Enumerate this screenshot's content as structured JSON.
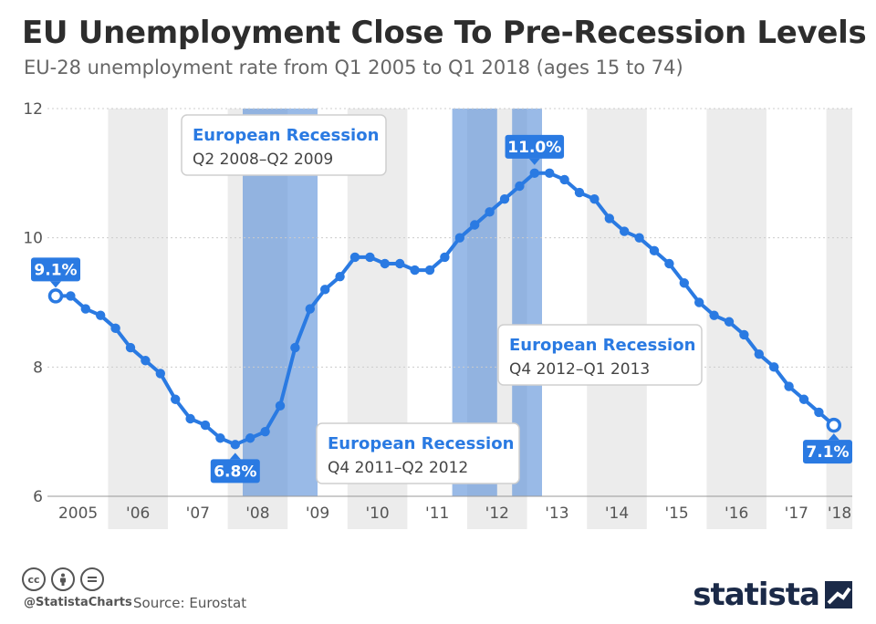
{
  "title": "EU Unemployment Close To Pre-Recession Levels",
  "subtitle": "EU-28 unemployment rate from Q1 2005 to Q1 2018 (ages 15 to 74)",
  "footer": {
    "handle": "@StatistaCharts",
    "source": "Source: Eurostat",
    "brand": "statista"
  },
  "colors": {
    "line": "#2a7ae2",
    "label_bg": "#2a7ae2",
    "band_gray": "#ececec",
    "recession": "#5b8fd9",
    "grid": "#cccccc"
  },
  "chart_data": {
    "type": "line",
    "title": "EU Unemployment Close To Pre-Recession Levels",
    "xlabel": "",
    "ylabel": "",
    "ylim": [
      6,
      12
    ],
    "yticks": [
      6,
      8,
      10,
      12
    ],
    "year_labels": [
      "2005",
      "'06",
      "'07",
      "'08",
      "'09",
      "'10",
      "'11",
      "'12",
      "'13",
      "'14",
      "'15",
      "'16",
      "'17",
      "'18"
    ],
    "series": [
      {
        "name": "EU-28 unemployment rate (%)",
        "x": [
          "Q1 2005",
          "Q2 2005",
          "Q3 2005",
          "Q4 2005",
          "Q1 2006",
          "Q2 2006",
          "Q3 2006",
          "Q4 2006",
          "Q1 2007",
          "Q2 2007",
          "Q3 2007",
          "Q4 2007",
          "Q1 2008",
          "Q2 2008",
          "Q3 2008",
          "Q4 2008",
          "Q1 2009",
          "Q2 2009",
          "Q3 2009",
          "Q4 2009",
          "Q1 2010",
          "Q2 2010",
          "Q3 2010",
          "Q4 2010",
          "Q1 2011",
          "Q2 2011",
          "Q3 2011",
          "Q4 2011",
          "Q1 2012",
          "Q2 2012",
          "Q3 2012",
          "Q4 2012",
          "Q1 2013",
          "Q2 2013",
          "Q3 2013",
          "Q4 2013",
          "Q1 2014",
          "Q2 2014",
          "Q3 2014",
          "Q4 2014",
          "Q1 2015",
          "Q2 2015",
          "Q3 2015",
          "Q4 2015",
          "Q1 2016",
          "Q2 2016",
          "Q3 2016",
          "Q4 2016",
          "Q1 2017",
          "Q2 2017",
          "Q3 2017",
          "Q4 2017",
          "Q1 2018"
        ],
        "values": [
          9.1,
          9.1,
          8.9,
          8.8,
          8.6,
          8.3,
          8.1,
          7.9,
          7.5,
          7.2,
          7.1,
          6.9,
          6.8,
          6.9,
          7.0,
          7.4,
          8.3,
          8.9,
          9.2,
          9.4,
          9.7,
          9.7,
          9.6,
          9.6,
          9.5,
          9.5,
          9.7,
          10.0,
          10.2,
          10.4,
          10.6,
          10.8,
          11.0,
          11.0,
          10.9,
          10.7,
          10.6,
          10.3,
          10.1,
          10.0,
          9.8,
          9.6,
          9.3,
          9.0,
          8.8,
          8.7,
          8.5,
          8.2,
          8.0,
          7.7,
          7.5,
          7.3,
          7.1
        ]
      }
    ],
    "value_labels": [
      {
        "index": 0,
        "text": "9.1%"
      },
      {
        "index": 12,
        "text": "6.8%"
      },
      {
        "index": 32,
        "text": "11.0%"
      },
      {
        "index": 52,
        "text": "7.1%"
      }
    ],
    "recessions": [
      {
        "start": 13,
        "end": 17,
        "heading": "European Recession",
        "period": "Q2 2008–Q2 2009"
      },
      {
        "start": 27,
        "end": 29,
        "heading": "European Recession",
        "period": "Q4 2011–Q2 2012"
      },
      {
        "start": 31,
        "end": 32,
        "heading": "European Recession",
        "period": "Q4 2012–Q1 2013"
      }
    ]
  }
}
